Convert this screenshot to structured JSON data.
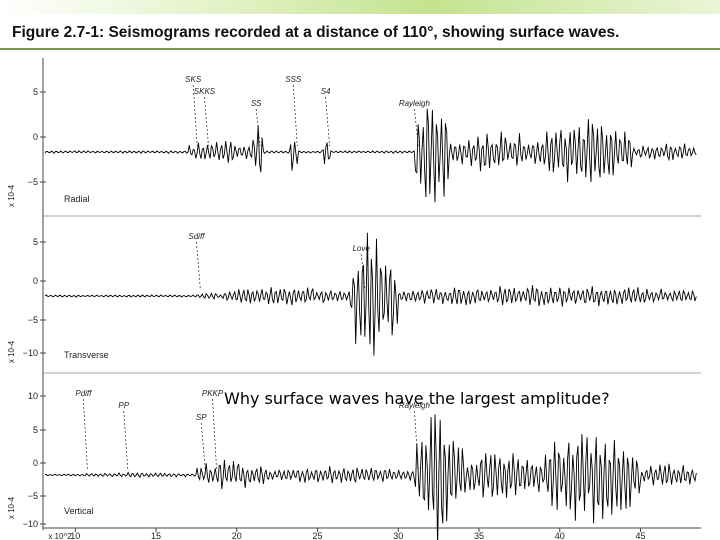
{
  "title": "Figure 2.7-1: Seismograms recorded at a distance of 110°, showing surface waves.",
  "question": "Why surface waves have the largest amplitude?",
  "colors": {
    "accent_bar": "#c4e38f",
    "rule": "#7a9a4a",
    "trace": "#000000"
  },
  "chart_data": {
    "type": "line",
    "x_axis": {
      "ticks": [
        "10",
        "15",
        "20",
        "25",
        "30",
        "35",
        "40",
        "45"
      ],
      "multiplier_label": "x 10^2",
      "range": [
        8,
        48.5
      ]
    },
    "panels": [
      {
        "name": "Radial",
        "multiplier_label": "x 10-4",
        "yticks": [
          "5",
          "0",
          "−5"
        ],
        "ylim": [
          -8,
          6.5
        ],
        "phases": [
          {
            "label": "SKS",
            "x": 17.3
          },
          {
            "label": "SKKS",
            "x": 18.0
          },
          {
            "label": "SS",
            "x": 21.2
          },
          {
            "label": "SSS",
            "x": 23.5
          },
          {
            "label": "S4",
            "x": 25.5
          },
          {
            "label": "Rayleigh",
            "x": 31.0
          }
        ],
        "wave_packets": [
          {
            "x": [
              17.0,
              21.0
            ],
            "amplitude": 1.5
          },
          {
            "x": [
              21.0,
              21.6
            ],
            "amplitude": 4.0
          },
          {
            "x": [
              23.3,
              23.8
            ],
            "amplitude": 3.0
          },
          {
            "x": [
              25.3,
              25.8
            ],
            "amplitude": 2.5
          },
          {
            "x": [
              31.0,
              33.2
            ],
            "amplitude": 7.5
          },
          {
            "x": [
              33.2,
              39.0
            ],
            "amplitude": 2.5
          },
          {
            "x": [
              39.0,
              44.5
            ],
            "amplitude": 4.5
          },
          {
            "x": [
              44.5,
              48.5
            ],
            "amplitude": 1.2
          }
        ]
      },
      {
        "name": "Transverse",
        "multiplier_label": "x 10-4",
        "yticks": [
          "5",
          "0",
          "−5",
          "−10"
        ],
        "ylim": [
          -12,
          7
        ],
        "phases": [
          {
            "label": "Sdiff",
            "x": 17.5
          },
          {
            "label": "Love",
            "x": 27.7
          }
        ],
        "wave_packets": [
          {
            "x": [
              17.5,
              19.0
            ],
            "amplitude": 0.6
          },
          {
            "x": [
              19.0,
              27.0
            ],
            "amplitude": 1.4
          },
          {
            "x": [
              27.0,
              30.0
            ],
            "amplitude": 9.0
          },
          {
            "x": [
              30.0,
              48.5
            ],
            "amplitude": 1.5
          }
        ]
      },
      {
        "name": "Vertical",
        "multiplier_label": "x 10-4",
        "yticks": [
          "10",
          "5",
          "0",
          "−5",
          "−10"
        ],
        "ylim": [
          -11,
          12
        ],
        "phases": [
          {
            "label": "Pdiff",
            "x": 10.5
          },
          {
            "label": "PP",
            "x": 13.0
          },
          {
            "label": "SP",
            "x": 17.8
          },
          {
            "label": "PKKP",
            "x": 18.5
          },
          {
            "label": "Rayleigh",
            "x": 31.0
          }
        ],
        "wave_packets": [
          {
            "x": [
              10.5,
              17.5
            ],
            "amplitude": 0.4
          },
          {
            "x": [
              17.5,
              22.0
            ],
            "amplitude": 2.5
          },
          {
            "x": [
              22.0,
              31.0
            ],
            "amplitude": 1.5
          },
          {
            "x": [
              31.0,
              34.0
            ],
            "amplitude": 11.0
          },
          {
            "x": [
              34.0,
              39.0
            ],
            "amplitude": 5.0
          },
          {
            "x": [
              39.0,
              45.0
            ],
            "amplitude": 8.0
          },
          {
            "x": [
              45.0,
              48.5
            ],
            "amplitude": 2.0
          }
        ]
      }
    ]
  }
}
